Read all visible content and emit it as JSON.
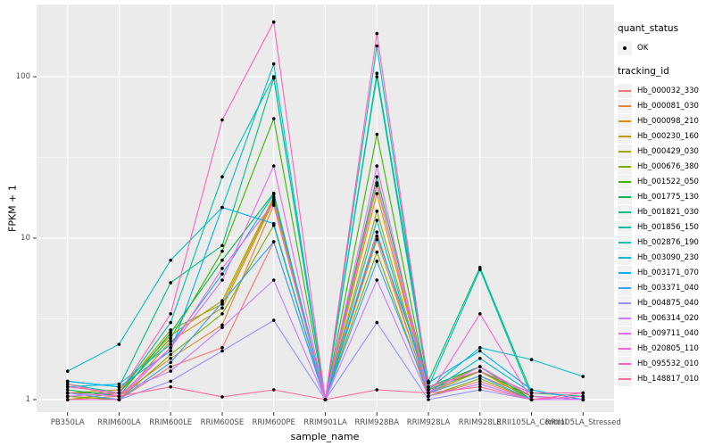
{
  "figure": {
    "background": "#FFFFFF",
    "panel_background": "#EBEBEB",
    "grid_color": "#FFFFFF",
    "axis_text_color": "#4D4D4D",
    "tick_mark_color": "#333333",
    "point_color": "#000000",
    "legend_key_fill": "#F2F2F2"
  },
  "axes": {
    "x_title": "sample_name",
    "y_title": "FPKM + 1"
  },
  "legend": {
    "quant_status_title": "quant_status",
    "ok_label": "OK",
    "tracking_id_title": "tracking_id"
  },
  "chart_data": {
    "type": "line",
    "title": "",
    "xlabel": "sample_name",
    "ylabel": "FPKM + 1",
    "y_scale": "log10",
    "ylim": [
      0.85,
      280
    ],
    "grid": true,
    "legend_position": "right",
    "point_marker": "filled-circle",
    "categories": [
      "PB350LA",
      "RRIM600LA",
      "RRIM600LE",
      "RRIM600SE",
      "RRIM600PE",
      "RRIM901LA",
      "RRIM928BA",
      "RRIM928LA",
      "RRIM928LE",
      "RRII105LA_Control",
      "RRII105LA_Stressed"
    ],
    "y_ticks": [
      {
        "value": 1,
        "label": "1"
      },
      {
        "value": 10,
        "label": "10"
      },
      {
        "value": 100,
        "label": "100"
      }
    ],
    "y_minor_ticks": [
      3.1623,
      31.623
    ],
    "series": [
      {
        "name": "Hb_000032_330",
        "color": "#F8766D",
        "values": [
          1.05,
          1.0,
          1.6,
          2.1,
          9.5,
          1.0,
          10.9,
          1.05,
          1.3,
          1.0,
          1.0
        ]
      },
      {
        "name": "Hb_000081_030",
        "color": "#EA8331",
        "values": [
          1.0,
          1.05,
          1.8,
          2.9,
          16,
          1.0,
          9.8,
          1.1,
          1.4,
          1.05,
          1.0
        ]
      },
      {
        "name": "Hb_000098_210",
        "color": "#D89000",
        "values": [
          1.05,
          1.0,
          2.3,
          3.7,
          17,
          1.0,
          18.9,
          1.1,
          1.5,
          1.0,
          1.05
        ]
      },
      {
        "name": "Hb_000230_160",
        "color": "#C09B00",
        "values": [
          1.1,
          1.15,
          2.5,
          4.1,
          18,
          1.0,
          21.2,
          1.15,
          1.6,
          1.05,
          1.0
        ]
      },
      {
        "name": "Hb_000429_030",
        "color": "#A3A500",
        "values": [
          1.0,
          1.1,
          2.7,
          3.9,
          17.5,
          1.0,
          14.7,
          1.1,
          1.5,
          1.0,
          1.0
        ]
      },
      {
        "name": "Hb_000676_380",
        "color": "#7CAE00",
        "values": [
          1.05,
          1.0,
          1.9,
          3.4,
          12,
          1.0,
          8.2,
          1.05,
          1.35,
          1.0,
          1.0
        ]
      },
      {
        "name": "Hb_001522_050",
        "color": "#39B600",
        "values": [
          1.1,
          1.1,
          2.4,
          8.3,
          55,
          1.0,
          44,
          1.15,
          1.5,
          1.05,
          1.0
        ]
      },
      {
        "name": "Hb_001775_130",
        "color": "#00BB4E",
        "values": [
          1.15,
          1.05,
          2.6,
          7.3,
          19,
          1.0,
          24,
          1.2,
          1.6,
          1.0,
          1.0
        ]
      },
      {
        "name": "Hb_001821_030",
        "color": "#00BF7D",
        "values": [
          1.3,
          1.2,
          5.3,
          9.0,
          98,
          1.0,
          105,
          1.3,
          6.6,
          1.1,
          1.05
        ]
      },
      {
        "name": "Hb_001856_150",
        "color": "#00C1A3",
        "values": [
          1.25,
          1.1,
          3.0,
          24,
          100,
          1.0,
          100,
          1.2,
          6.4,
          1.05,
          1.0
        ]
      },
      {
        "name": "Hb_002876_190",
        "color": "#00BFC4",
        "values": [
          1.5,
          2.2,
          7.3,
          15.5,
          120,
          1.0,
          155,
          1.15,
          2.1,
          1.77,
          1.39
        ]
      },
      {
        "name": "Hb_003090_230",
        "color": "#00BBDA",
        "values": [
          1.2,
          1.25,
          2.2,
          6.0,
          18.7,
          1.0,
          12.9,
          1.1,
          1.8,
          1.1,
          1.1
        ]
      },
      {
        "name": "Hb_003171_070",
        "color": "#00B0F6",
        "values": [
          1.3,
          1.2,
          2.0,
          15.5,
          12.3,
          1.0,
          10.3,
          1.27,
          2.0,
          1.15,
          1.0
        ]
      },
      {
        "name": "Hb_003371_040",
        "color": "#35A2FF",
        "values": [
          1.1,
          1.0,
          1.7,
          4.0,
          9.5,
          1.0,
          7.2,
          1.1,
          1.4,
          1.0,
          1.0
        ]
      },
      {
        "name": "Hb_004875_040",
        "color": "#9590FF",
        "values": [
          1.0,
          1.0,
          1.3,
          2.0,
          3.1,
          1.0,
          3.0,
          1.0,
          1.15,
          1.0,
          1.0
        ]
      },
      {
        "name": "Hb_006314_020",
        "color": "#C77CFF",
        "values": [
          1.05,
          1.1,
          1.5,
          2.8,
          5.5,
          1.0,
          5.5,
          1.05,
          1.25,
          1.0,
          1.0
        ]
      },
      {
        "name": "Hb_009711_040",
        "color": "#E76BF3",
        "values": [
          1.1,
          1.05,
          2.1,
          5.5,
          28,
          1.0,
          28,
          1.1,
          1.6,
          1.05,
          1.0
        ]
      },
      {
        "name": "Hb_020805_110",
        "color": "#FA62DB",
        "values": [
          1.0,
          1.0,
          2.1,
          6.5,
          16.5,
          1.0,
          22,
          1.05,
          3.4,
          1.0,
          1.05
        ]
      },
      {
        "name": "Hb_095532_010",
        "color": "#FF62BC",
        "values": [
          1.2,
          1.1,
          3.4,
          54,
          218,
          1.0,
          185,
          1.2,
          1.5,
          1.1,
          1.1
        ]
      },
      {
        "name": "Hb_148817_010",
        "color": "#FF6A98",
        "values": [
          1.25,
          1.05,
          1.2,
          1.04,
          1.15,
          1.0,
          1.15,
          1.1,
          1.2,
          1.0,
          1.1
        ]
      }
    ]
  }
}
